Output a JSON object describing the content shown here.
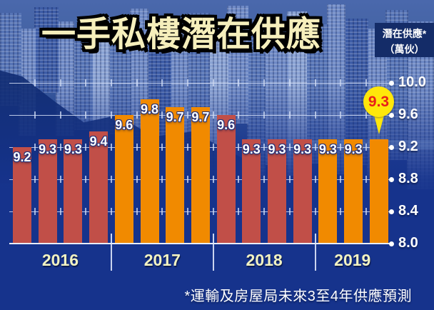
{
  "title": "一手私樓潛在供應",
  "unit_box": {
    "line1": "潛在供應*",
    "line2": "（萬伙）"
  },
  "footnote": "*運輸及房屋局未來3至4年供應預測",
  "callout": {
    "value": "9.3"
  },
  "colors": {
    "background_navy": "#16338c",
    "bar_red": "#c14f48",
    "bar_orange": "#f18a00",
    "callout_bg": "#ffe70a",
    "callout_text": "#e8211a",
    "year_label": "#f1f2c2",
    "title_fill": "#f6efbc",
    "axis_text": "#ffffff"
  },
  "chart_data": {
    "type": "bar",
    "title": "一手私樓潛在供應",
    "ylabel": "潛在供應（萬伙）",
    "unit": "萬伙",
    "ylim": [
      8.0,
      10.0
    ],
    "yticks": [
      10.0,
      9.6,
      9.2,
      8.8,
      8.4,
      8.0
    ],
    "grid": true,
    "legend_position": "top-right",
    "categories": [
      "2016",
      "2016",
      "2016",
      "2016",
      "2017",
      "2017",
      "2017",
      "2017",
      "2018",
      "2018",
      "2018",
      "2018",
      "2019",
      "2019",
      "2019"
    ],
    "groups": [
      {
        "year": "2016",
        "color": "#c14f48",
        "values": [
          9.2,
          9.3,
          9.3,
          9.4
        ]
      },
      {
        "year": "2017",
        "color": "#f18a00",
        "values": [
          9.6,
          9.8,
          9.7,
          9.7
        ]
      },
      {
        "year": "2018",
        "color": "#c14f48",
        "values": [
          9.6,
          9.3,
          9.3,
          9.3
        ]
      },
      {
        "year": "2019",
        "color": "#f18a00",
        "values": [
          9.3,
          9.3,
          9.3
        ],
        "last_bar_labelled_by_callout": true
      }
    ],
    "annotations": [
      {
        "type": "callout-balloon",
        "text": "9.3",
        "target": "last 2019 bar"
      }
    ],
    "footnote": "*運輸及房屋局未來3至4年供應預測"
  }
}
